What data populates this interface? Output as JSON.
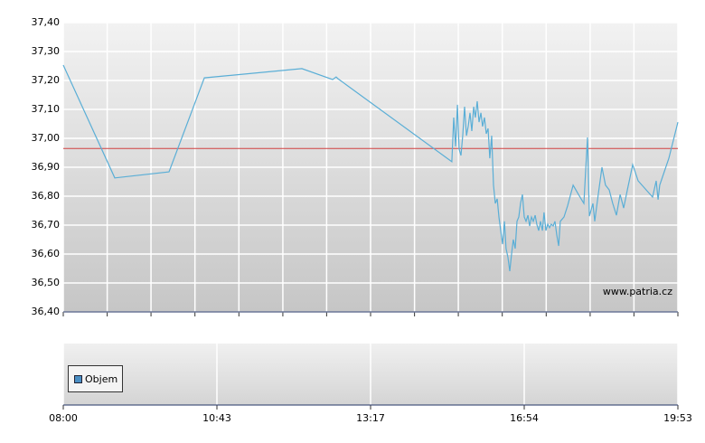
{
  "chart_data": [
    {
      "type": "line",
      "color": "#5aaed6",
      "xlim": [
        0,
        4
      ],
      "xminorticks": [
        0,
        0.286,
        0.571,
        0.857,
        1.143,
        1.429,
        1.714,
        2,
        2.286,
        2.571,
        2.857,
        3.143,
        3.429,
        3.714,
        4
      ],
      "ylim": [
        36.4,
        37.4
      ],
      "yticks": [
        {
          "value": 36.4,
          "label": "36,40"
        },
        {
          "value": 36.5,
          "label": "36,50"
        },
        {
          "value": 36.6,
          "label": "36,60"
        },
        {
          "value": 36.7,
          "label": "36,70"
        },
        {
          "value": 36.8,
          "label": "36,80"
        },
        {
          "value": 36.9,
          "label": "36,90"
        },
        {
          "value": 37.0,
          "label": "37,00"
        },
        {
          "value": 37.1,
          "label": "37,10"
        },
        {
          "value": 37.2,
          "label": "37,20"
        },
        {
          "value": 37.3,
          "label": "37,30"
        },
        {
          "value": 37.4,
          "label": "37,40"
        }
      ],
      "grid": true,
      "reference_line": {
        "value": 36.965,
        "color": "#d04040"
      },
      "watermark": "www.patria.cz",
      "x": [
        0,
        0.335,
        0.688,
        0.918,
        1.553,
        1.753,
        1.776,
        1.788,
        2.529,
        2.541,
        2.553,
        2.565,
        2.576,
        2.588,
        2.6,
        2.612,
        2.624,
        2.635,
        2.647,
        2.659,
        2.671,
        2.682,
        2.694,
        2.706,
        2.718,
        2.729,
        2.741,
        2.753,
        2.765,
        2.776,
        2.788,
        2.8,
        2.812,
        2.824,
        2.835,
        2.847,
        2.859,
        2.871,
        2.882,
        2.894,
        2.906,
        2.918,
        2.929,
        2.941,
        2.953,
        2.965,
        2.976,
        2.988,
        3,
        3.012,
        3.024,
        3.035,
        3.047,
        3.059,
        3.071,
        3.082,
        3.094,
        3.106,
        3.118,
        3.129,
        3.141,
        3.153,
        3.165,
        3.176,
        3.188,
        3.2,
        3.212,
        3.224,
        3.235,
        3.259,
        3.282,
        3.318,
        3.353,
        3.388,
        3.4,
        3.412,
        3.424,
        3.447,
        3.459,
        3.482,
        3.506,
        3.529,
        3.553,
        3.576,
        3.6,
        3.624,
        3.647,
        3.671,
        3.706,
        3.741,
        3.835,
        3.859,
        3.871,
        3.882,
        3.941,
        4
      ],
      "values": [
        37.253,
        36.863,
        36.884,
        37.209,
        37.241,
        37.203,
        37.212,
        37.206,
        36.919,
        37.072,
        36.972,
        37.116,
        36.963,
        36.941,
        37.011,
        37.109,
        37.009,
        37.041,
        37.088,
        37.025,
        37.109,
        37.072,
        37.128,
        37.056,
        37.088,
        37.041,
        37.072,
        37.016,
        37.034,
        36.931,
        37.009,
        36.838,
        36.775,
        36.791,
        36.728,
        36.681,
        36.634,
        36.713,
        36.619,
        36.588,
        36.541,
        36.603,
        36.65,
        36.619,
        36.713,
        36.728,
        36.775,
        36.806,
        36.728,
        36.713,
        36.734,
        36.697,
        36.728,
        36.713,
        36.734,
        36.703,
        36.681,
        36.713,
        36.681,
        36.744,
        36.681,
        36.703,
        36.691,
        36.703,
        36.697,
        36.713,
        36.666,
        36.628,
        36.713,
        36.728,
        36.766,
        36.838,
        36.806,
        36.775,
        36.891,
        37.003,
        36.731,
        36.775,
        36.713,
        36.806,
        36.9,
        36.838,
        36.822,
        36.775,
        36.734,
        36.806,
        36.759,
        36.822,
        36.909,
        36.853,
        36.797,
        36.853,
        36.788,
        36.838,
        36.931,
        37.056
      ]
    },
    {
      "type": "bar",
      "xlim": [
        0,
        4
      ],
      "xticks": [
        {
          "value": 0,
          "label": "08:00"
        },
        {
          "value": 1,
          "label": "10:43"
        },
        {
          "value": 2,
          "label": "13:17"
        },
        {
          "value": 3,
          "label": "16:54"
        },
        {
          "value": 4,
          "label": "19:53"
        }
      ],
      "series": [
        {
          "name": "Objem",
          "color": "#4a8fc4"
        }
      ]
    }
  ]
}
